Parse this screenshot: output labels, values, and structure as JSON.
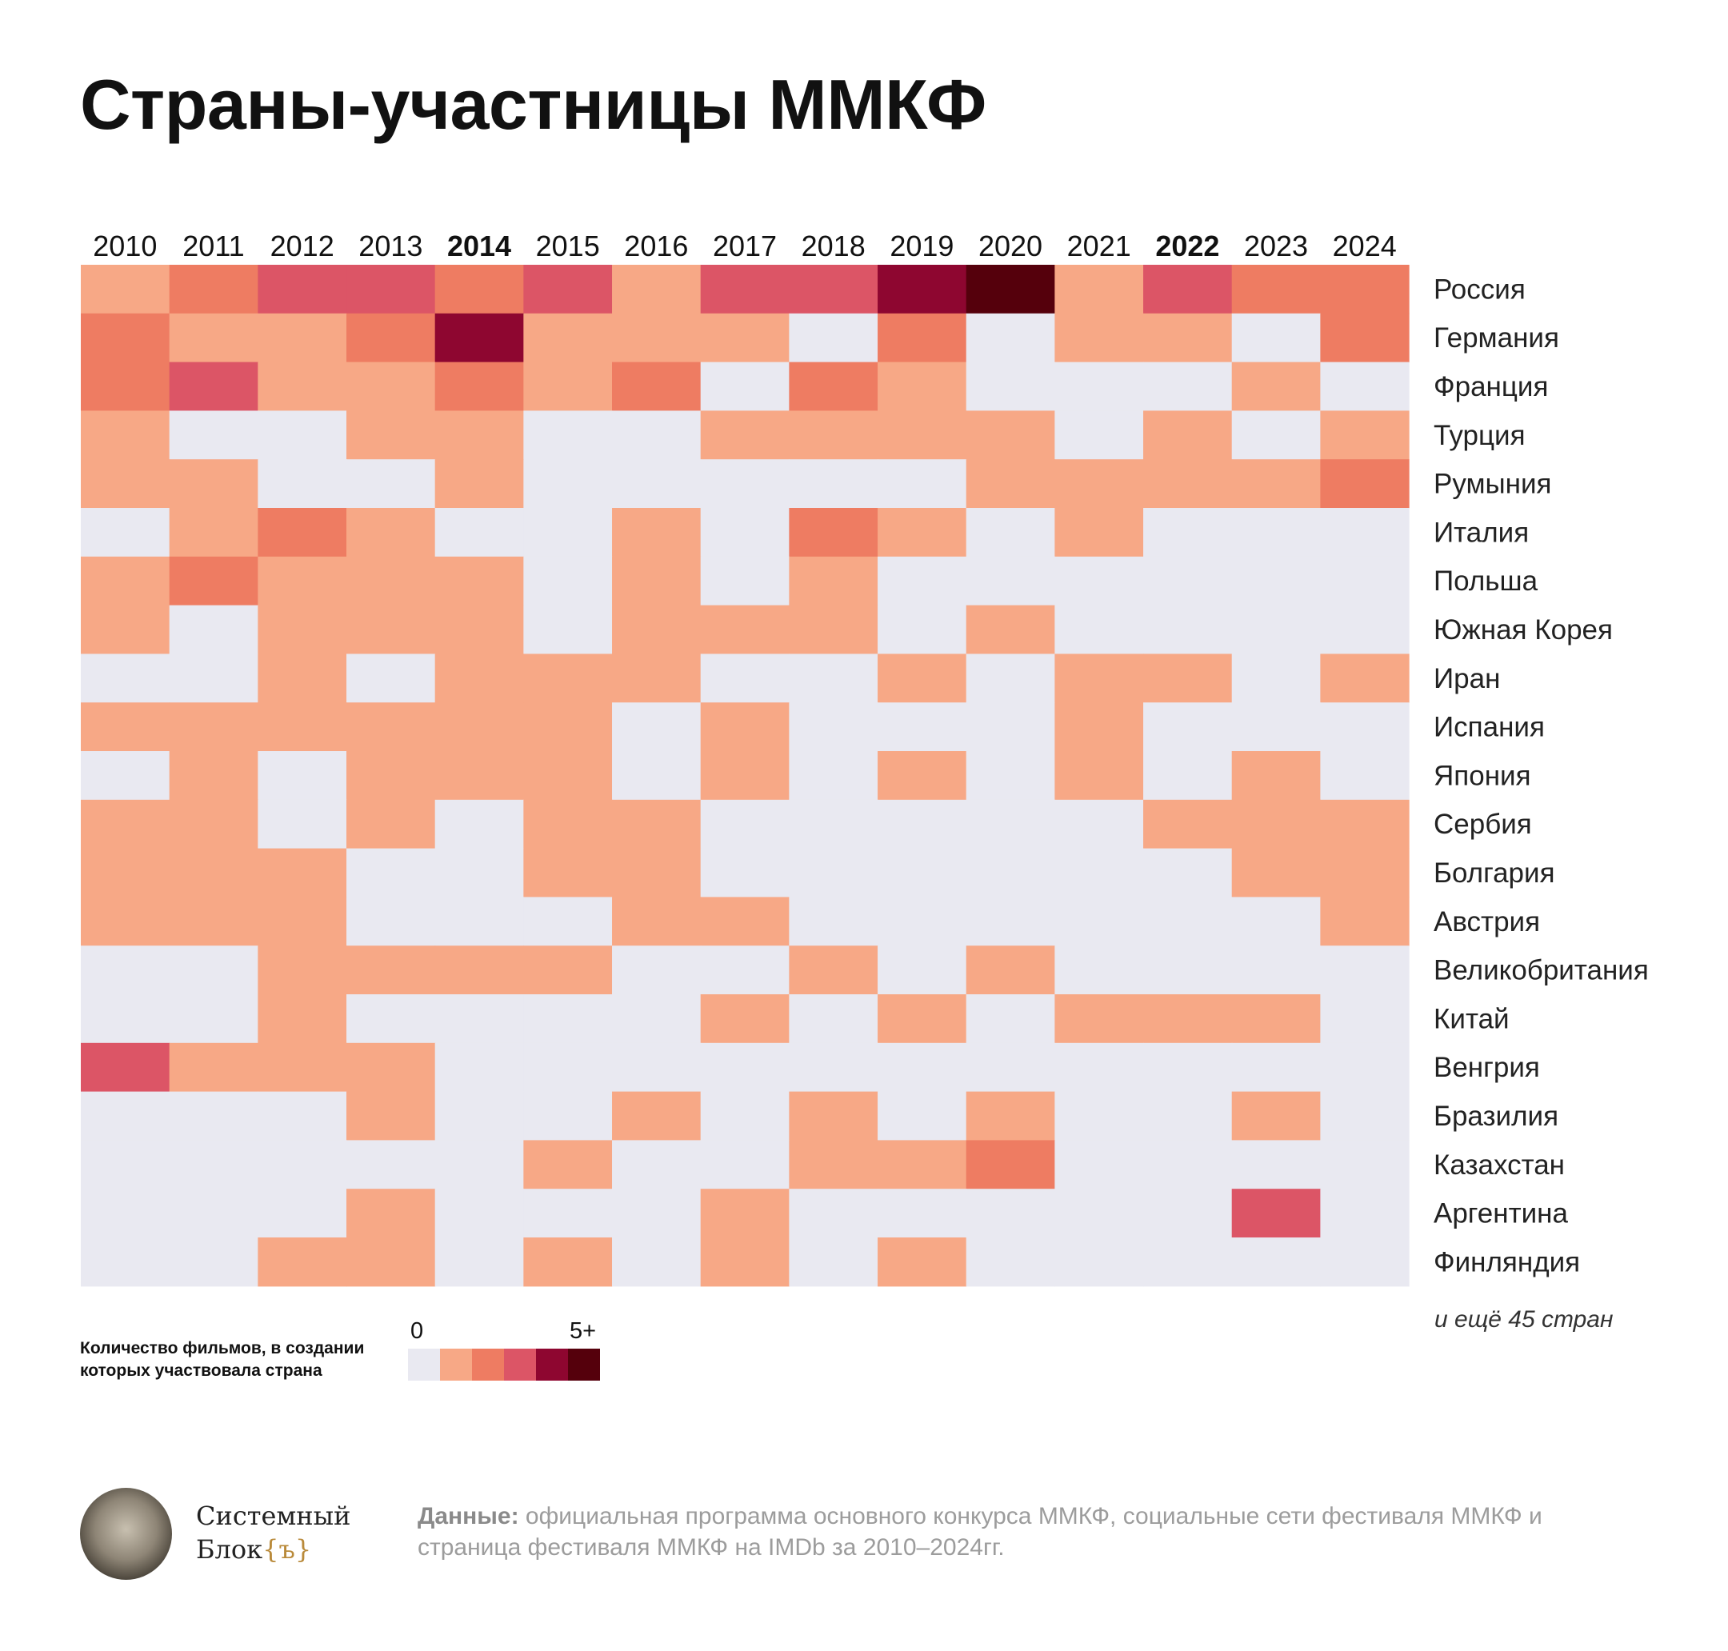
{
  "title": "Страны-участницы ММКФ",
  "chart_data": {
    "type": "heatmap",
    "title": "Страны-участницы ММКФ",
    "years": [
      "2010",
      "2011",
      "2012",
      "2013",
      "2014",
      "2015",
      "2016",
      "2017",
      "2018",
      "2019",
      "2020",
      "2021",
      "2022",
      "2023",
      "2024"
    ],
    "highlighted_years": [
      "2014",
      "2022"
    ],
    "countries": [
      "Россия",
      "Германия",
      "Франция",
      "Турция",
      "Румыния",
      "Италия",
      "Польша",
      "Южная Корея",
      "Иран",
      "Испания",
      "Япония",
      "Сербия",
      "Болгария",
      "Австрия",
      "Великобритания",
      "Китай",
      "Венгрия",
      "Бразилия",
      "Казахстан",
      "Аргентина",
      "Финляндия"
    ],
    "values": [
      [
        1,
        2,
        3,
        3,
        2,
        3,
        1,
        3,
        3,
        4,
        5,
        1,
        3,
        2,
        2
      ],
      [
        2,
        1,
        1,
        2,
        4,
        1,
        1,
        1,
        0,
        2,
        0,
        1,
        1,
        0,
        2
      ],
      [
        2,
        3,
        1,
        1,
        2,
        1,
        2,
        0,
        2,
        1,
        0,
        0,
        0,
        1,
        0
      ],
      [
        1,
        0,
        0,
        1,
        1,
        0,
        0,
        1,
        1,
        1,
        1,
        0,
        1,
        0,
        1
      ],
      [
        1,
        1,
        0,
        0,
        1,
        0,
        0,
        0,
        0,
        0,
        1,
        1,
        1,
        1,
        2
      ],
      [
        0,
        1,
        2,
        1,
        0,
        0,
        1,
        0,
        2,
        1,
        0,
        1,
        0,
        0,
        0
      ],
      [
        1,
        2,
        1,
        1,
        1,
        0,
        1,
        0,
        1,
        0,
        0,
        0,
        0,
        0,
        0
      ],
      [
        1,
        0,
        1,
        1,
        1,
        0,
        1,
        1,
        1,
        0,
        1,
        0,
        0,
        0,
        0
      ],
      [
        0,
        0,
        1,
        0,
        1,
        1,
        1,
        0,
        0,
        1,
        0,
        1,
        1,
        0,
        1
      ],
      [
        1,
        1,
        1,
        1,
        1,
        1,
        0,
        1,
        0,
        0,
        0,
        1,
        0,
        0,
        0
      ],
      [
        0,
        1,
        0,
        1,
        1,
        1,
        0,
        1,
        0,
        1,
        0,
        1,
        0,
        1,
        0
      ],
      [
        1,
        1,
        0,
        1,
        0,
        1,
        1,
        0,
        0,
        0,
        0,
        0,
        1,
        1,
        1
      ],
      [
        1,
        1,
        1,
        0,
        0,
        1,
        1,
        0,
        0,
        0,
        0,
        0,
        0,
        1,
        1
      ],
      [
        1,
        1,
        1,
        0,
        0,
        0,
        1,
        1,
        0,
        0,
        0,
        0,
        0,
        0,
        1
      ],
      [
        0,
        0,
        1,
        1,
        1,
        1,
        0,
        0,
        1,
        0,
        1,
        0,
        0,
        0,
        0
      ],
      [
        0,
        0,
        1,
        0,
        0,
        0,
        0,
        1,
        0,
        1,
        0,
        1,
        1,
        1,
        0
      ],
      [
        3,
        1,
        1,
        1,
        0,
        0,
        0,
        0,
        0,
        0,
        0,
        0,
        0,
        0,
        0
      ],
      [
        0,
        0,
        0,
        1,
        0,
        0,
        1,
        0,
        1,
        0,
        1,
        0,
        0,
        1,
        0
      ],
      [
        0,
        0,
        0,
        0,
        0,
        1,
        0,
        0,
        1,
        1,
        2,
        0,
        0,
        0,
        0
      ],
      [
        0,
        0,
        0,
        1,
        0,
        0,
        0,
        1,
        0,
        0,
        0,
        0,
        0,
        3,
        0
      ],
      [
        0,
        0,
        1,
        1,
        0,
        1,
        0,
        1,
        0,
        1,
        0,
        0,
        0,
        0,
        0
      ]
    ],
    "colorscale": [
      "#e9e9f1",
      "#f7a886",
      "#ee7c62",
      "#dc5566",
      "#8e0630",
      "#55000c"
    ],
    "legend": {
      "title": "Количество фильмов, в создании которых участвовала страна",
      "min_label": "0",
      "max_label": "5+"
    },
    "note": "и ещё 45 стран"
  },
  "brand": {
    "line1": "Системный",
    "line2": "Блок",
    "mark": "{ъ}"
  },
  "source": {
    "label": "Данные:",
    "text": " официальная программа основного конкурса ММКФ, социальные сети фестиваля ММКФ и страница фестиваля ММКФ на IMDb за 2010–2024гг."
  }
}
